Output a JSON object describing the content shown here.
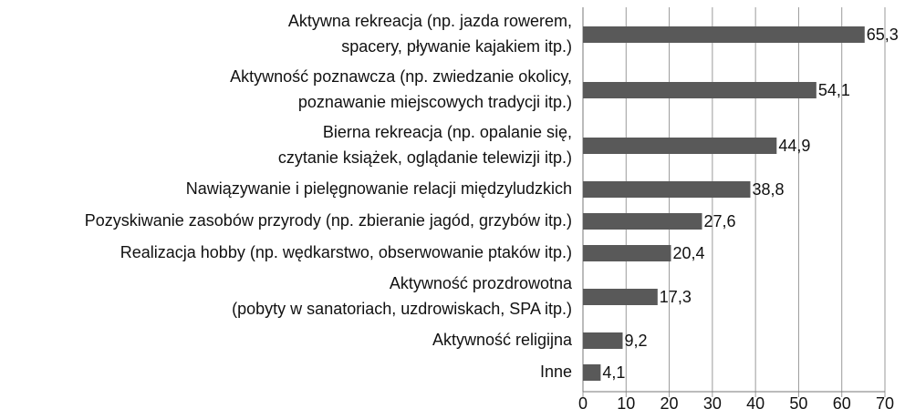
{
  "chart_data": {
    "type": "bar",
    "orientation": "horizontal",
    "categories": [
      [
        "Aktywna rekreacja (np. jazda rowerem,",
        "spacery, pływanie kajakiem itp.)"
      ],
      [
        "Aktywność poznawcza (np. zwiedzanie okolicy,",
        "poznawanie miejscowych tradycji itp.)"
      ],
      [
        "Bierna rekreacja (np. opalanie się,",
        "czytanie książek, oglądanie telewizji itp.)"
      ],
      [
        "Nawiązywanie i pielęgnowanie relacji międzyludzkich"
      ],
      [
        "Pozyskiwanie zasobów przyrody (np. zbieranie jagód, grzybów itp.)"
      ],
      [
        "Realizacja hobby (np. wędkarstwo, obserwowanie ptaków itp.)"
      ],
      [
        "Aktywność prozdrowotna",
        "(pobyty w sanatoriach, uzdrowiskach, SPA itp.)"
      ],
      [
        "Aktywność religijna"
      ],
      [
        "Inne"
      ]
    ],
    "values": [
      65.3,
      54.1,
      44.9,
      38.8,
      27.6,
      20.4,
      17.3,
      9.2,
      4.1
    ],
    "value_labels": [
      "65,3",
      "54,1",
      "44,9",
      "38,8",
      "27,6",
      "20,4",
      "17,3",
      "9,2",
      "4,1"
    ],
    "color": "#595959",
    "xlim": [
      0,
      70
    ],
    "xticks": [
      0,
      10,
      20,
      30,
      40,
      50,
      60,
      70
    ],
    "grid": true
  }
}
